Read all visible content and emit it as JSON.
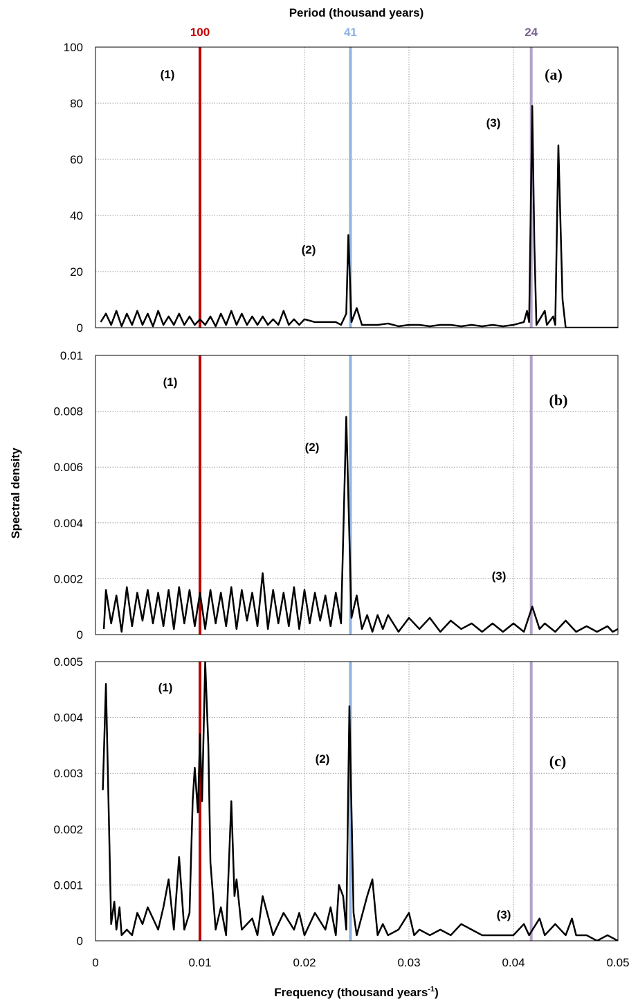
{
  "top_axis_label": "Period (thousand years)",
  "xlabel": [
    "Frequency (thousand years",
    "-1",
    ")"
  ],
  "ylabel": "Spectral density",
  "vlines": [
    {
      "x": 0.01,
      "label": "100",
      "color": "#c00000",
      "label_color": "#c00000"
    },
    {
      "x": 0.0244,
      "label": "41",
      "color": "#8db4e2",
      "label_color": "#8db4e2"
    },
    {
      "x": 0.0417,
      "label": "24",
      "color": "#b3a2c7",
      "label_color": "#7a6491"
    }
  ],
  "chart_data": [
    {
      "type": "line",
      "panel_label": "(a)",
      "annotations": [
        "(1)",
        "(2)",
        "(3)"
      ],
      "xlim": [
        0,
        0.05
      ],
      "xticks": [
        0,
        0.01,
        0.02,
        0.03,
        0.04,
        0.05
      ],
      "xtick_labels": false,
      "ylim": [
        0,
        100
      ],
      "yticks": [
        0,
        20,
        40,
        60,
        80,
        100
      ],
      "grid": true,
      "x": [
        0.0005,
        0.001,
        0.0015,
        0.002,
        0.0025,
        0.003,
        0.0035,
        0.004,
        0.0045,
        0.005,
        0.0055,
        0.006,
        0.0065,
        0.007,
        0.0075,
        0.008,
        0.0085,
        0.009,
        0.0095,
        0.01,
        0.0105,
        0.011,
        0.0115,
        0.012,
        0.0125,
        0.013,
        0.0135,
        0.014,
        0.0145,
        0.015,
        0.0155,
        0.016,
        0.0165,
        0.017,
        0.0175,
        0.018,
        0.0185,
        0.019,
        0.0195,
        0.02,
        0.021,
        0.022,
        0.023,
        0.0235,
        0.024,
        0.0242,
        0.0245,
        0.025,
        0.0255,
        0.026,
        0.027,
        0.028,
        0.029,
        0.03,
        0.031,
        0.032,
        0.033,
        0.034,
        0.035,
        0.036,
        0.037,
        0.038,
        0.039,
        0.04,
        0.041,
        0.0413,
        0.0415,
        0.0418,
        0.042,
        0.0422,
        0.043,
        0.0432,
        0.0438,
        0.044,
        0.0443,
        0.0447,
        0.045,
        0.047,
        0.05
      ],
      "series": [
        {
          "color": "#000000",
          "values": [
            2,
            5,
            1,
            6,
            0.5,
            5,
            1,
            6,
            1,
            5,
            0.5,
            6,
            1,
            4,
            1,
            5,
            1,
            4,
            1,
            3,
            1,
            4,
            0.5,
            5,
            1,
            6,
            1,
            5,
            1,
            4,
            1,
            4,
            1,
            3,
            1,
            6,
            1,
            3,
            1,
            3,
            2,
            2,
            2,
            1,
            5,
            33,
            2,
            7,
            1,
            1,
            1,
            1.5,
            0.5,
            1,
            1,
            0.5,
            1,
            1,
            0.5,
            1,
            0.5,
            1,
            0.5,
            1,
            2,
            6,
            2,
            79,
            30,
            1,
            6,
            1,
            4,
            1,
            65,
            10,
            0,
            0,
            0
          ]
        }
      ]
    },
    {
      "type": "line",
      "panel_label": "(b)",
      "annotations": [
        "(1)",
        "(2)",
        "(3)"
      ],
      "xlim": [
        0,
        0.05
      ],
      "xticks": [
        0,
        0.01,
        0.02,
        0.03,
        0.04,
        0.05
      ],
      "xtick_labels": false,
      "ylim": [
        0,
        0.01
      ],
      "yticks": [
        0,
        0.002,
        0.004,
        0.006,
        0.008,
        0.01
      ],
      "grid": true,
      "x": [
        0.0008,
        0.001,
        0.0015,
        0.002,
        0.0025,
        0.003,
        0.0035,
        0.004,
        0.0045,
        0.005,
        0.0055,
        0.006,
        0.0065,
        0.007,
        0.0075,
        0.008,
        0.0085,
        0.009,
        0.0095,
        0.01,
        0.0105,
        0.011,
        0.0115,
        0.012,
        0.0125,
        0.013,
        0.0135,
        0.014,
        0.0145,
        0.015,
        0.0155,
        0.016,
        0.0165,
        0.017,
        0.0175,
        0.018,
        0.0185,
        0.019,
        0.0195,
        0.02,
        0.0205,
        0.021,
        0.0215,
        0.022,
        0.0225,
        0.023,
        0.0235,
        0.024,
        0.0245,
        0.025,
        0.0255,
        0.026,
        0.0265,
        0.027,
        0.0275,
        0.028,
        0.029,
        0.03,
        0.031,
        0.032,
        0.033,
        0.034,
        0.035,
        0.036,
        0.037,
        0.038,
        0.039,
        0.04,
        0.041,
        0.0418,
        0.0425,
        0.043,
        0.044,
        0.045,
        0.046,
        0.047,
        0.048,
        0.049,
        0.0495,
        0.05
      ],
      "series": [
        {
          "color": "#000000",
          "values": [
            0.0002,
            0.0016,
            0.0004,
            0.0014,
            0.0001,
            0.0017,
            0.0003,
            0.0015,
            0.0005,
            0.0016,
            0.0004,
            0.0015,
            0.0003,
            0.0016,
            0.0002,
            0.0017,
            0.0004,
            0.0016,
            0.0003,
            0.0015,
            0.0002,
            0.0016,
            0.0004,
            0.0015,
            0.0003,
            0.0017,
            0.0002,
            0.0016,
            0.0005,
            0.0015,
            0.0003,
            0.0022,
            0.0002,
            0.0016,
            0.0004,
            0.0015,
            0.0003,
            0.0017,
            0.0002,
            0.0016,
            0.0004,
            0.0015,
            0.0005,
            0.0014,
            0.0003,
            0.0015,
            0.0004,
            0.0078,
            0.0006,
            0.0014,
            0.0002,
            0.0007,
            0.0001,
            0.0007,
            0.0002,
            0.0007,
            0.0001,
            0.0006,
            0.0002,
            0.0006,
            0.0001,
            0.0005,
            0.0002,
            0.0004,
            0.0001,
            0.0004,
            0.0001,
            0.0004,
            0.0001,
            0.001,
            0.0002,
            0.0004,
            0.0001,
            0.0005,
            0.0001,
            0.0003,
            0.0001,
            0.0003,
            0.0001,
            0.0002
          ]
        }
      ]
    },
    {
      "type": "line",
      "panel_label": "(c)",
      "annotations": [
        "(1)",
        "(2)",
        "(3)"
      ],
      "xlim": [
        0,
        0.05
      ],
      "xticks": [
        0,
        0.01,
        0.02,
        0.03,
        0.04,
        0.05
      ],
      "xtick_labels": true,
      "ylim": [
        0,
        0.005
      ],
      "yticks": [
        0,
        0.001,
        0.002,
        0.003,
        0.004,
        0.005
      ],
      "grid": true,
      "x": [
        0.0007,
        0.001,
        0.0015,
        0.0018,
        0.002,
        0.0023,
        0.0025,
        0.003,
        0.0035,
        0.004,
        0.0045,
        0.005,
        0.0055,
        0.006,
        0.0065,
        0.007,
        0.0075,
        0.008,
        0.0085,
        0.009,
        0.0093,
        0.0095,
        0.0098,
        0.01,
        0.0102,
        0.0105,
        0.0108,
        0.011,
        0.0115,
        0.012,
        0.0125,
        0.013,
        0.0133,
        0.0135,
        0.014,
        0.015,
        0.0155,
        0.016,
        0.017,
        0.018,
        0.019,
        0.0195,
        0.02,
        0.021,
        0.022,
        0.0225,
        0.023,
        0.0233,
        0.0237,
        0.024,
        0.0243,
        0.0247,
        0.025,
        0.026,
        0.0265,
        0.027,
        0.0275,
        0.028,
        0.029,
        0.03,
        0.0305,
        0.031,
        0.032,
        0.033,
        0.034,
        0.035,
        0.036,
        0.037,
        0.038,
        0.039,
        0.04,
        0.041,
        0.0415,
        0.0425,
        0.043,
        0.044,
        0.045,
        0.0456,
        0.046,
        0.047,
        0.048,
        0.049,
        0.05
      ],
      "series": [
        {
          "color": "#000000",
          "values": [
            0.0027,
            0.0046,
            0.0003,
            0.0007,
            0.0002,
            0.0006,
            0.0001,
            0.0002,
            0.0001,
            0.0005,
            0.0003,
            0.0006,
            0.0004,
            0.0002,
            0.0006,
            0.0011,
            0.0002,
            0.0015,
            0.0002,
            0.0005,
            0.0025,
            0.0031,
            0.0023,
            0.0037,
            0.0025,
            0.005,
            0.0035,
            0.0014,
            0.0002,
            0.0006,
            0.0001,
            0.0025,
            0.0008,
            0.0011,
            0.0002,
            0.0004,
            0.0001,
            0.0008,
            0.0001,
            0.0005,
            0.0002,
            0.0005,
            0.0001,
            0.0005,
            0.0002,
            0.0006,
            0.0001,
            0.001,
            0.0008,
            0.0002,
            0.0042,
            0.0005,
            0.0001,
            0.0008,
            0.0011,
            0.0001,
            0.0003,
            0.0001,
            0.0002,
            0.0005,
            0.0001,
            0.0002,
            0.0001,
            0.0002,
            0.0001,
            0.0003,
            0.0002,
            0.0001,
            0.0001,
            0.0001,
            0.0001,
            0.0003,
            0.0001,
            0.0004,
            0.0001,
            0.0003,
            0.0001,
            0.0004,
            0.0001,
            0.0001,
            0,
            0.0001,
            0
          ]
        }
      ]
    }
  ]
}
